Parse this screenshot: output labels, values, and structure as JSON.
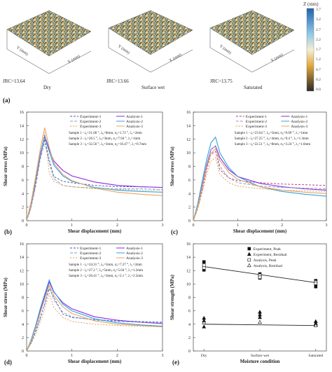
{
  "panel_a": {
    "label": "(a)",
    "surfaces": [
      {
        "jrc": "JRC=13.64",
        "condition": "Dry"
      },
      {
        "jrc": "JRC=13.66",
        "condition": "Surface wet"
      },
      {
        "jrc": "JRC=13.75",
        "condition": "Saturated"
      }
    ],
    "axis_x": "X (mm)",
    "axis_y": "Y (mm)",
    "colorbar": {
      "title": "Z (mm)",
      "ticks": [
        "3.7",
        "3.2",
        "2.7",
        "2.2",
        "1.7",
        "1.2",
        "0.7",
        "0.2"
      ],
      "bottom": "0.0"
    }
  },
  "chart_data": [
    {
      "panel": "(b)",
      "type": "line",
      "xlabel": "Shear displacement (mm)",
      "ylabel": "Shear stress (MPa)",
      "xlim": [
        0,
        3
      ],
      "ylim": [
        0,
        16
      ],
      "xticks": [
        0,
        1,
        2,
        3
      ],
      "yticks": [
        0,
        2,
        4,
        6,
        8,
        10,
        12,
        14,
        16
      ],
      "legend": [
        "Experiment-1",
        "Analysis-1",
        "Experiment-2",
        "Analysis-2",
        "Experiment-3",
        "Analysis-3"
      ],
      "notes": [
        "Sample 1 - i₀=21.06 °, λ₀=8mm, σ₀=1.72 °, λ₁=2mm",
        "Sample 2 - i₀=26.5 °, λ₀=3mm, σ₀=7.94 °, λ₁=1mm",
        "Sample 3 - i₀=32.56 °, λ₀=3mm, σ₀=16.47 °, λ₁=0.7mm"
      ],
      "series": [
        {
          "name": "Experiment-1",
          "color": "#4b4bb5",
          "dash": "3,2",
          "x": [
            0,
            0.1,
            0.2,
            0.3,
            0.4,
            0.5,
            0.6,
            0.8,
            1,
            1.5,
            2,
            2.5,
            3
          ],
          "y": [
            0,
            2,
            5.5,
            9.5,
            12,
            9,
            6.5,
            5.8,
            5.6,
            5.2,
            5.0,
            5.0,
            4.9
          ]
        },
        {
          "name": "Analysis-1",
          "color": "#8a2be2",
          "dash": "",
          "x": [
            0,
            0.1,
            0.2,
            0.3,
            0.4,
            0.5,
            0.6,
            0.8,
            1,
            1.5,
            2,
            2.5,
            3
          ],
          "y": [
            0,
            2.6,
            5.8,
            9.5,
            12.5,
            10.5,
            8.8,
            7.4,
            6.6,
            5.7,
            5.2,
            5.0,
            4.9
          ]
        },
        {
          "name": "Experiment-2",
          "color": "#7aa3c9",
          "dash": "4,2",
          "x": [
            0,
            0.1,
            0.2,
            0.3,
            0.4,
            0.5,
            0.6,
            0.8,
            1,
            1.5,
            2,
            2.5,
            3
          ],
          "y": [
            0,
            2,
            5,
            9,
            11.5,
            8.5,
            6.2,
            5.2,
            5.0,
            4.8,
            4.7,
            4.7,
            4.6
          ]
        },
        {
          "name": "Analysis-2",
          "color": "#33a1de",
          "dash": "",
          "x": [
            0,
            0.1,
            0.2,
            0.3,
            0.4,
            0.5,
            0.6,
            0.8,
            1,
            1.5,
            2,
            2.5,
            3
          ],
          "y": [
            0,
            2.7,
            6,
            9.8,
            12.3,
            10.2,
            8.2,
            6.6,
            5.8,
            4.9,
            4.5,
            4.3,
            4.2
          ]
        },
        {
          "name": "Experiment-3",
          "color": "#d89a4a",
          "dash": "2,2",
          "x": [
            0,
            0.1,
            0.2,
            0.3,
            0.4,
            0.5,
            0.6,
            0.8,
            1,
            1.5,
            2,
            2.5,
            3
          ],
          "y": [
            0,
            2.1,
            5.8,
            10,
            13,
            7,
            5.8,
            5.2,
            5.0,
            4.7,
            4.6,
            4.5,
            4.5
          ]
        },
        {
          "name": "Analysis-3",
          "color": "#e3a66a",
          "dash": "",
          "x": [
            0,
            0.1,
            0.2,
            0.3,
            0.4,
            0.5,
            0.6,
            0.8,
            1,
            1.5,
            2,
            2.5,
            3
          ],
          "y": [
            0,
            2.8,
            6.5,
            10.5,
            13.7,
            10.8,
            8.5,
            6.8,
            5.9,
            4.8,
            4.2,
            3.9,
            3.7
          ]
        }
      ]
    },
    {
      "panel": "(c)",
      "type": "line",
      "xlabel": "Shear displacement (mm)",
      "ylabel": "Shear stress (MPa)",
      "xlim": [
        0,
        3
      ],
      "ylim": [
        0,
        16
      ],
      "xticks": [
        0,
        1,
        2,
        3
      ],
      "yticks": [
        0,
        2,
        4,
        6,
        8,
        10,
        12,
        14,
        16
      ],
      "legend": [
        "Experiment-1",
        "Analysis-1",
        "Experiment-2",
        "Analysis-2",
        "Experiment-3",
        "Analysis-3"
      ],
      "notes": [
        "Sample 1 - i₀=23.64 °, λ₀=5mm, σ₀=9.09 °, λ₁=1mm",
        "Sample 2 - i₀=27.25 °, λ₀=4mm, σ₀=9.4 °, λ₁=1.3mm",
        "Sample 3 - i₀=22.51 °, λ₀=8mm, σ₀=3.24 °, λ₁=1.6mm"
      ],
      "series": [
        {
          "name": "Experiment-1",
          "color": "#c0306a",
          "dash": "3,2",
          "x": [
            0,
            0.1,
            0.2,
            0.3,
            0.4,
            0.5,
            0.6,
            0.8,
            1,
            1.5,
            2,
            2.5,
            3
          ],
          "y": [
            0,
            1.8,
            4.5,
            7.5,
            9.8,
            10.2,
            7.5,
            6.3,
            5.9,
            5.6,
            5.4,
            5.3,
            5.2
          ]
        },
        {
          "name": "Analysis-1",
          "color": "#8a2be2",
          "dash": "",
          "x": [
            0,
            0.1,
            0.2,
            0.3,
            0.4,
            0.5,
            0.6,
            0.8,
            1,
            1.5,
            2,
            2.5,
            3
          ],
          "y": [
            0,
            2.2,
            5.2,
            8.2,
            10.5,
            11,
            9.3,
            7.5,
            6.5,
            5.5,
            5.0,
            4.7,
            4.5
          ]
        },
        {
          "name": "Experiment-2",
          "color": "#7aa3c9",
          "dash": "4,2",
          "x": [
            0,
            0.1,
            0.2,
            0.3,
            0.4,
            0.5,
            0.6,
            0.8,
            1,
            1.5,
            2,
            2.5,
            3
          ],
          "y": [
            0,
            2,
            4.8,
            8,
            10.5,
            11,
            8,
            6.3,
            5.6,
            5.1,
            4.9,
            4.8,
            4.7
          ]
        },
        {
          "name": "Analysis-2",
          "color": "#33a1de",
          "dash": "",
          "x": [
            0,
            0.1,
            0.2,
            0.3,
            0.4,
            0.5,
            0.6,
            0.8,
            1,
            1.5,
            2,
            2.5,
            3
          ],
          "y": [
            0,
            2.5,
            5.8,
            9,
            11.5,
            12.3,
            10.0,
            7.8,
            6.5,
            5.0,
            4.3,
            3.9,
            3.6
          ]
        },
        {
          "name": "Experiment-3",
          "color": "#d89a4a",
          "dash": "2,2",
          "x": [
            0,
            0.1,
            0.2,
            0.3,
            0.4,
            0.5,
            0.6,
            0.8,
            1,
            1.5,
            2,
            2.5,
            3
          ],
          "y": [
            0,
            1.7,
            4.2,
            6.8,
            8.8,
            9.3,
            6.8,
            5.6,
            5.1,
            4.7,
            4.5,
            4.4,
            4.3
          ]
        },
        {
          "name": "Analysis-3",
          "color": "#e3a66a",
          "dash": "",
          "x": [
            0,
            0.1,
            0.2,
            0.3,
            0.4,
            0.5,
            0.6,
            0.8,
            1,
            1.5,
            2,
            2.5,
            3
          ],
          "y": [
            0,
            2.1,
            5,
            7.9,
            9.9,
            10.6,
            8.9,
            7.1,
            6.1,
            5.0,
            4.5,
            4.2,
            4.0
          ]
        }
      ]
    },
    {
      "panel": "(d)",
      "type": "line",
      "xlabel": "Shear displacement (mm)",
      "ylabel": "Shear stress (MPa)",
      "xlim": [
        0,
        3
      ],
      "ylim": [
        0,
        16
      ],
      "xticks": [
        0,
        1,
        2,
        3
      ],
      "yticks": [
        0,
        2,
        4,
        6,
        8,
        10,
        12,
        14,
        16
      ],
      "legend": [
        "Experiment-1",
        "Analysis-1",
        "Experiment-2",
        "Analysis-2",
        "Experiment-3",
        "Analysis-3"
      ],
      "notes": [
        "Sample 1 - i₀=24.31 °, λ₀=5mm, σ₀=7.27 °, λ₁=2mm",
        "Sample 2 - i₀=27.2 °, λ₀=5mm, σ₀=5.04 °, λ₁=1.2mm",
        "Sample 3 - i₀=20.41 °, λ₀=3mm, σ₀=2.1 °, λ₁=2.5mm"
      ],
      "series": [
        {
          "name": "Experiment-1",
          "color": "#4b4bb5",
          "dash": "3,2",
          "x": [
            0,
            0.1,
            0.2,
            0.3,
            0.4,
            0.5,
            0.6,
            0.8,
            1,
            1.5,
            2,
            2.5,
            3
          ],
          "y": [
            0,
            1.3,
            3,
            5,
            7,
            9.3,
            8,
            5.5,
            5.0,
            4.7,
            4.5,
            4.4,
            4.3
          ]
        },
        {
          "name": "Analysis-1",
          "color": "#8a2be2",
          "dash": "",
          "x": [
            0,
            0.1,
            0.2,
            0.3,
            0.4,
            0.5,
            0.6,
            0.8,
            1,
            1.5,
            2,
            2.5,
            3
          ],
          "y": [
            0,
            1.6,
            3.6,
            6,
            8.2,
            10.3,
            8.8,
            7.2,
            6.3,
            5.1,
            4.6,
            4.3,
            4.1
          ]
        },
        {
          "name": "Experiment-2",
          "color": "#7aa3c9",
          "dash": "4,2",
          "x": [
            0,
            0.1,
            0.2,
            0.3,
            0.4,
            0.5,
            0.6,
            0.8,
            1,
            1.5,
            2,
            2.5,
            3
          ],
          "y": [
            0,
            1.2,
            2.8,
            4.8,
            7,
            9.7,
            7.6,
            5.8,
            5.1,
            4.6,
            4.4,
            4.3,
            4.2
          ]
        },
        {
          "name": "Analysis-2",
          "color": "#33a1de",
          "dash": "",
          "x": [
            0,
            0.1,
            0.2,
            0.3,
            0.4,
            0.5,
            0.6,
            0.8,
            1,
            1.5,
            2,
            2.5,
            3
          ],
          "y": [
            0,
            1.7,
            3.8,
            6.3,
            8.5,
            10.6,
            8.9,
            7.0,
            6.0,
            4.8,
            4.2,
            3.9,
            3.7
          ]
        },
        {
          "name": "Experiment-3",
          "color": "#d89a4a",
          "dash": "2,2",
          "x": [
            0,
            0.1,
            0.2,
            0.3,
            0.4,
            0.5,
            0.6,
            0.8,
            1,
            1.5,
            2,
            2.5,
            3
          ],
          "y": [
            0,
            1.1,
            2.5,
            4.3,
            6.3,
            8.6,
            6.5,
            5.0,
            4.4,
            4.0,
            3.8,
            3.7,
            3.6
          ]
        },
        {
          "name": "Analysis-3",
          "color": "#e3a66a",
          "dash": "",
          "x": [
            0,
            0.1,
            0.2,
            0.3,
            0.4,
            0.5,
            0.6,
            0.8,
            1,
            1.5,
            2,
            2.5,
            3
          ],
          "y": [
            0,
            1.5,
            3.4,
            5.7,
            7.8,
            9.8,
            8.3,
            6.6,
            5.6,
            4.5,
            4.0,
            3.8,
            3.6
          ]
        }
      ]
    },
    {
      "panel": "(e)",
      "type": "scatter",
      "xlabel": "Moisture condition",
      "ylabel": "Shear strength (MPa)",
      "categories": [
        "Dry",
        "Surface wet",
        "Saturated"
      ],
      "ylim": [
        0,
        16
      ],
      "yticks": [
        0,
        2,
        4,
        6,
        8,
        10,
        12,
        14,
        16
      ],
      "legend": [
        "Experiment, Peak",
        "Experiment, Residual",
        "Analysis, Peak",
        "Analysis, Residual"
      ],
      "series": [
        {
          "name": "Experiment, Peak",
          "marker": "square-filled",
          "points": [
            [
              0,
              13.3
            ],
            [
              0,
              12.6
            ],
            [
              0,
              12.1
            ],
            [
              1,
              11.5
            ],
            [
              1,
              11.1
            ],
            [
              1,
              10.9
            ],
            [
              2,
              10.5
            ],
            [
              2,
              10.0
            ],
            [
              2,
              9.6
            ]
          ]
        },
        {
          "name": "Experiment, Residual",
          "marker": "triangle-filled",
          "points": [
            [
              0,
              4.9
            ],
            [
              0,
              4.5
            ],
            [
              0,
              3.6
            ],
            [
              1,
              5.8
            ],
            [
              1,
              5.4
            ],
            [
              1,
              5.0
            ],
            [
              2,
              4.4
            ],
            [
              2,
              4.1
            ],
            [
              2,
              3.9
            ]
          ]
        },
        {
          "name": "Analysis, Peak",
          "marker": "square-open",
          "points": [
            [
              0,
              12.8
            ],
            [
              0,
              12.4
            ],
            [
              1,
              11.3
            ],
            [
              1,
              11.0
            ],
            [
              2,
              10.3
            ],
            [
              2,
              10.1
            ]
          ]
        },
        {
          "name": "Analysis, Residual",
          "marker": "triangle-open",
          "points": [
            [
              0,
              4.2
            ],
            [
              1,
              4.3
            ],
            [
              2,
              3.8
            ]
          ]
        }
      ],
      "trend_lines": [
        {
          "from": [
            0,
            12.6
          ],
          "to": [
            2,
            10.2
          ]
        },
        {
          "from": [
            0,
            4.0
          ],
          "to": [
            2,
            3.8
          ]
        }
      ]
    }
  ]
}
